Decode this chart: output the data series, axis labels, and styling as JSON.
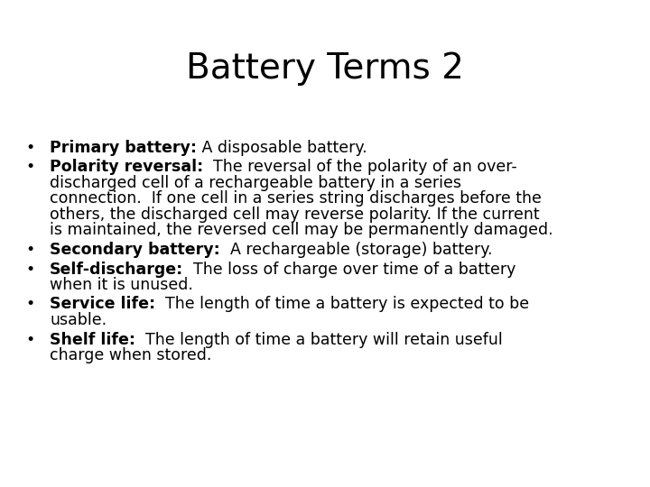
{
  "title": "Battery Terms 2",
  "background_color": "#ffffff",
  "title_fontsize": 28,
  "text_fontsize": 12.5,
  "bullet_items": [
    {
      "bold_part": "Primary battery:",
      "normal_part": " A disposable battery."
    },
    {
      "bold_part": "Polarity reversal:",
      "normal_part": "  The reversal of the polarity of an over-\ndischarged cell of a rechargeable battery in a series\nconnection.  If one cell in a series string discharges before the\nothers, the discharged cell may reverse polarity. If the current\nis maintained, the reversed cell may be permanently damaged."
    },
    {
      "bold_part": "Secondary battery:",
      "normal_part": "  A rechargeable (storage) battery."
    },
    {
      "bold_part": "Self-discharge:",
      "normal_part": "  The loss of charge over time of a battery\nwhen it is unused."
    },
    {
      "bold_part": "Service life:",
      "normal_part": "  The length of time a battery is expected to be\nusable."
    },
    {
      "bold_part": "Shelf life:",
      "normal_part": "  The length of time a battery will retain useful\ncharge when stored."
    }
  ]
}
